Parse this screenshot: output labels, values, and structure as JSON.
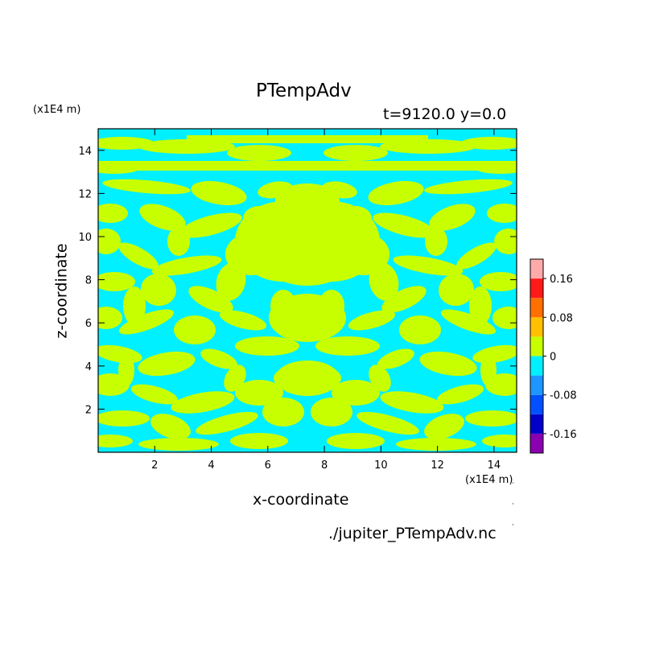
{
  "chart_data": {
    "type": "heatmap",
    "title": "PTempAdv",
    "subtitle": "t=9120.0 y=0.0",
    "xlabel": "x-coordinate",
    "ylabel": "z-coordinate",
    "x_unit": "(x1E4 m)",
    "y_unit": "(x1E4 m)",
    "xlim": [
      0,
      14.8
    ],
    "ylim": [
      0,
      15
    ],
    "x_ticks": [
      "2",
      "4",
      "6",
      "8",
      "10",
      "12",
      "14"
    ],
    "y_ticks": [
      "2",
      "4",
      "6",
      "8",
      "10",
      "12",
      "14"
    ],
    "x_tick_values": [
      2,
      4,
      6,
      8,
      10,
      12,
      14
    ],
    "y_tick_values": [
      2,
      4,
      6,
      8,
      10,
      12,
      14
    ],
    "field_levels": {
      "dominant_positive": "0 to 0.04",
      "dominant_negative": "-0.04 to 0"
    },
    "colorbar": {
      "levels": [
        -0.2,
        -0.16,
        -0.12,
        -0.08,
        -0.04,
        0,
        0.04,
        0.08,
        0.12,
        0.16,
        0.2
      ],
      "colors": [
        "#8b00b0",
        "#0000c8",
        "#0050ff",
        "#1e96ff",
        "#00f0ff",
        "#c8ff00",
        "#ffc000",
        "#ff7000",
        "#ff1a1a",
        "#ffaaaa"
      ],
      "tick_labels": [
        "0.16",
        "0.08",
        "0",
        "-0.08",
        "-0.16"
      ],
      "tick_values": [
        0.16,
        0.08,
        0,
        -0.08,
        -0.16
      ]
    },
    "grid": false,
    "legend": "colorbar-right"
  },
  "colors": {
    "positive": "#c8ff00",
    "negative": "#00f0ff",
    "axis": "#000000"
  },
  "footer": {
    "filename": "./jupiter_PTempAdv.nc"
  }
}
